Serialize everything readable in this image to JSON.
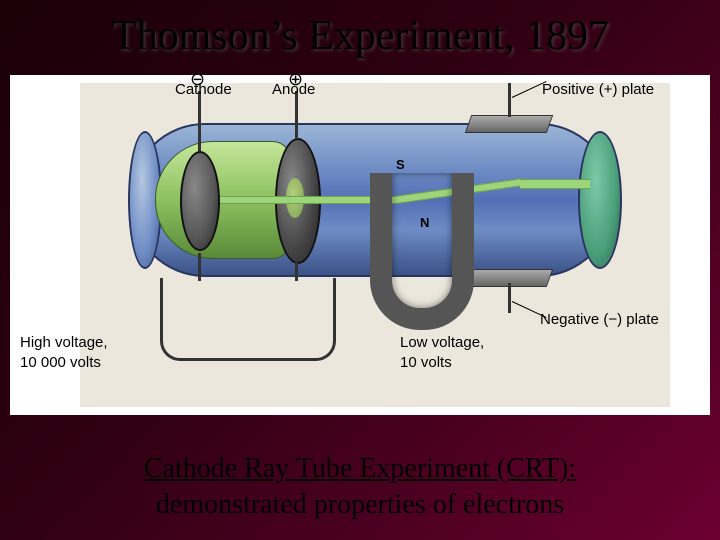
{
  "title": "Thomson’s Experiment, 1897",
  "diagram": {
    "cathode_sign": "⊖",
    "anode_sign": "⊕",
    "cathode_label": "Cathode",
    "anode_label": "Anode",
    "magnet_s": "S",
    "magnet_n": "N",
    "positive_plate_label": "Positive (+) plate",
    "negative_plate_label": "Negative (−) plate",
    "high_voltage_label_line1": "High voltage,",
    "high_voltage_label_line2": "10 000 volts",
    "low_voltage_label_line1": "Low voltage,",
    "low_voltage_label_line2": "10 volts",
    "colors": {
      "tube_blue_light": "#9bb5d6",
      "tube_blue_mid": "#6e8cc4",
      "tube_blue_dark": "#3a5288",
      "green_light": "#c5e69a",
      "green_mid": "#8cc060",
      "beam": "#9dd67a",
      "metal": "#555555",
      "bg_paper": "#ece7dc",
      "slide_bg_start": "#1a0008",
      "slide_bg_end": "#6b0030"
    }
  },
  "caption": {
    "line1": "Cathode Ray Tube Experiment (CRT):",
    "line2": "demonstrated properties of electrons"
  }
}
